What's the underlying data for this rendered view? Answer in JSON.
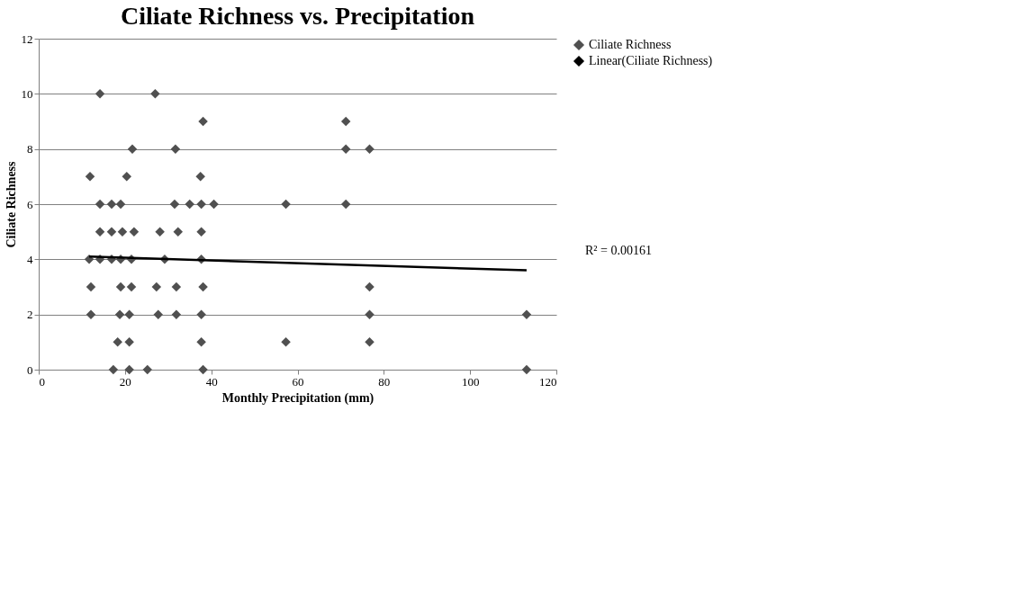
{
  "chart_data": {
    "type": "scatter",
    "title": "Ciliate Richness vs. Precipitation",
    "xlabel": "Monthly Precipitation (mm)",
    "ylabel": "Ciliate Richness",
    "series": [
      {
        "name": "Ciliate Richness",
        "color": "#505050",
        "marker": "diamond",
        "x": [
          14.2,
          27,
          21.7,
          11.9,
          20.4,
          14.2,
          16.9,
          19,
          14.2,
          16.9,
          19.4,
          22.1,
          28.1,
          11.7,
          14.2,
          16.9,
          19,
          21.5,
          12.1,
          19,
          21.5,
          27.3,
          12.1,
          18.8,
          21,
          27.7,
          18.3,
          21,
          17.3,
          21,
          25.2,
          38.1,
          31.7,
          37.5,
          31.5,
          35,
          37.7,
          40.6,
          57.3,
          32.3,
          37.7,
          29.2,
          37.7,
          31.9,
          38.1,
          31.9,
          37.7,
          37.7,
          57.3,
          38.1,
          71.2,
          71.2,
          76.7,
          71.2,
          76.7,
          76.7,
          76.7,
          113.1,
          113.1
        ],
        "values": [
          10,
          10,
          8,
          7,
          7,
          6,
          6,
          6,
          5,
          5,
          5,
          5,
          5,
          4,
          4,
          4,
          4,
          4,
          3,
          3,
          3,
          3,
          2,
          2,
          2,
          2,
          1,
          1,
          0,
          0,
          0,
          9,
          8,
          7,
          6,
          6,
          6,
          6,
          6,
          5,
          5,
          4,
          4,
          3,
          3,
          2,
          2,
          1,
          1,
          0,
          9,
          8,
          8,
          6,
          3,
          2,
          1,
          2,
          0
        ]
      },
      {
        "name": "Linear(Ciliate Richness)",
        "type": "line",
        "color": "#000000",
        "x": [
          11.7,
          113.1
        ],
        "values": [
          4.1,
          3.6
        ]
      }
    ],
    "xlim": [
      0,
      120
    ],
    "xticks": [
      0,
      20,
      40,
      60,
      80,
      100,
      120
    ],
    "ylim": [
      0,
      12
    ],
    "yticks": [
      0,
      2,
      4,
      6,
      8,
      10,
      12
    ],
    "grid": "y",
    "legend": "right",
    "annotations": [
      "R² = 0.00161"
    ]
  }
}
